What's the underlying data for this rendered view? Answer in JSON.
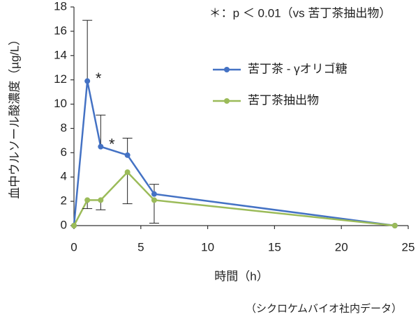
{
  "chart_data": {
    "type": "line",
    "x_label": "時間（h）",
    "y_label": "血中ウルソール酸濃度（µg/L）",
    "note": "＊：p ＜ 0.01（vs 苦丁茶抽出物）",
    "source": "（シクロケムバイオ社内データ）",
    "x": [
      0,
      1,
      2,
      4,
      6,
      24
    ],
    "series": [
      {
        "name": "苦丁茶 - γオリゴ糖",
        "color": "#4472c4",
        "values": [
          0,
          11.9,
          6.5,
          5.8,
          2.6,
          0
        ],
        "errors": [
          null,
          5.0,
          2.6,
          1.4,
          0.8,
          null
        ],
        "error_direction": "up"
      },
      {
        "name": "苦丁茶抽出物",
        "color": "#9bbb59",
        "values": [
          0,
          2.1,
          2.1,
          4.4,
          2.1,
          0
        ],
        "errors": [
          null,
          0.7,
          0.8,
          2.6,
          1.9,
          null
        ],
        "error_direction": "down"
      }
    ],
    "annotations": [
      "*",
      "*"
    ],
    "xlim": [
      0,
      25
    ],
    "xticks": [
      0,
      5,
      10,
      15,
      20,
      25
    ],
    "ylim": [
      0,
      18
    ],
    "yticks": [
      0,
      2,
      4,
      6,
      8,
      10,
      12,
      14,
      16,
      18
    ],
    "legend": "right"
  }
}
